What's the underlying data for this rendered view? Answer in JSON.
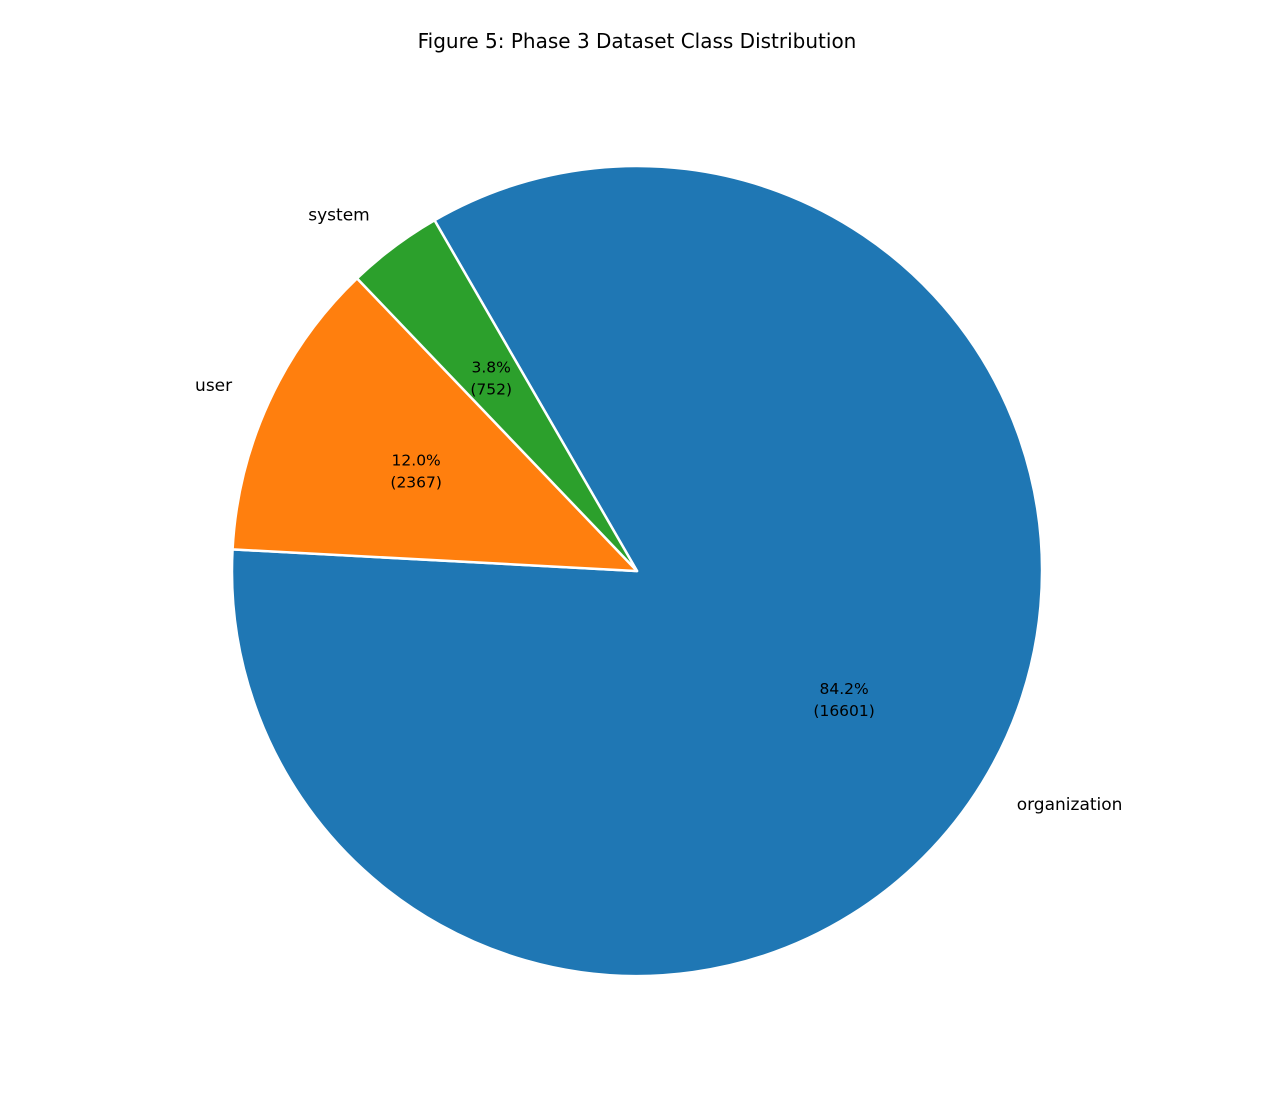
{
  "chart_data": {
    "type": "pie",
    "title": "Figure 5: Phase 3 Dataset Class Distribution",
    "start_angle_deg": 120,
    "direction": "clockwise",
    "slices": [
      {
        "label": "organization",
        "value": 16601,
        "pct_text": "84.2%",
        "count_text": "(16601)",
        "color": "#1f77b4"
      },
      {
        "label": "user",
        "value": 2367,
        "pct_text": "12.0%",
        "count_text": "(2367)",
        "color": "#ff7f0e"
      },
      {
        "label": "system",
        "value": 752,
        "pct_text": "3.8%",
        "count_text": "(752)",
        "color": "#2ca02c"
      }
    ]
  }
}
